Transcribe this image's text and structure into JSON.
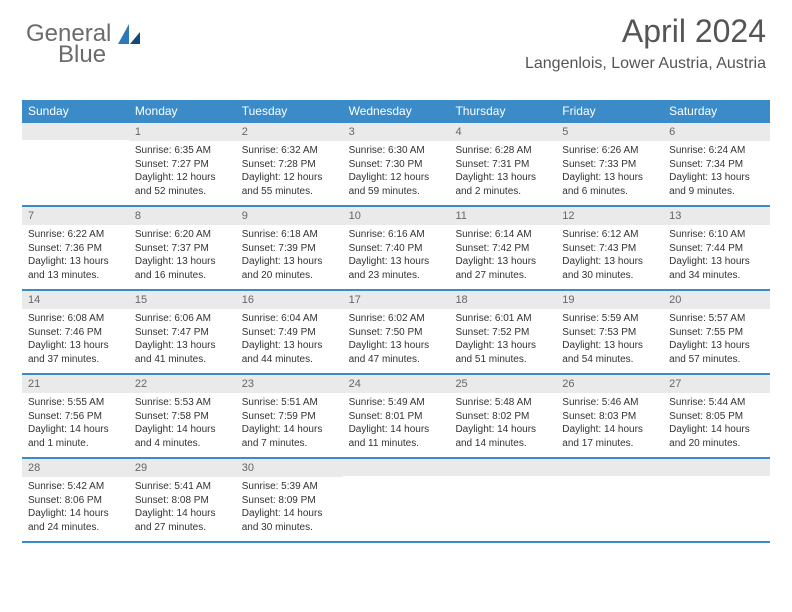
{
  "brand": {
    "word1": "General",
    "word2": "Blue"
  },
  "title": "April 2024",
  "location": "Langenlois, Lower Austria, Austria",
  "colors": {
    "header_bg": "#3b8bc9",
    "daynum_bg": "#eaeaea",
    "rule": "#3b8bc9",
    "text": "#333333",
    "muted": "#6b6b6b"
  },
  "days_of_week": [
    "Sunday",
    "Monday",
    "Tuesday",
    "Wednesday",
    "Thursday",
    "Friday",
    "Saturday"
  ],
  "weeks": [
    [
      {
        "day": null
      },
      {
        "day": 1,
        "sunrise": "Sunrise: 6:35 AM",
        "sunset": "Sunset: 7:27 PM",
        "daylight": "Daylight: 12 hours and 52 minutes."
      },
      {
        "day": 2,
        "sunrise": "Sunrise: 6:32 AM",
        "sunset": "Sunset: 7:28 PM",
        "daylight": "Daylight: 12 hours and 55 minutes."
      },
      {
        "day": 3,
        "sunrise": "Sunrise: 6:30 AM",
        "sunset": "Sunset: 7:30 PM",
        "daylight": "Daylight: 12 hours and 59 minutes."
      },
      {
        "day": 4,
        "sunrise": "Sunrise: 6:28 AM",
        "sunset": "Sunset: 7:31 PM",
        "daylight": "Daylight: 13 hours and 2 minutes."
      },
      {
        "day": 5,
        "sunrise": "Sunrise: 6:26 AM",
        "sunset": "Sunset: 7:33 PM",
        "daylight": "Daylight: 13 hours and 6 minutes."
      },
      {
        "day": 6,
        "sunrise": "Sunrise: 6:24 AM",
        "sunset": "Sunset: 7:34 PM",
        "daylight": "Daylight: 13 hours and 9 minutes."
      }
    ],
    [
      {
        "day": 7,
        "sunrise": "Sunrise: 6:22 AM",
        "sunset": "Sunset: 7:36 PM",
        "daylight": "Daylight: 13 hours and 13 minutes."
      },
      {
        "day": 8,
        "sunrise": "Sunrise: 6:20 AM",
        "sunset": "Sunset: 7:37 PM",
        "daylight": "Daylight: 13 hours and 16 minutes."
      },
      {
        "day": 9,
        "sunrise": "Sunrise: 6:18 AM",
        "sunset": "Sunset: 7:39 PM",
        "daylight": "Daylight: 13 hours and 20 minutes."
      },
      {
        "day": 10,
        "sunrise": "Sunrise: 6:16 AM",
        "sunset": "Sunset: 7:40 PM",
        "daylight": "Daylight: 13 hours and 23 minutes."
      },
      {
        "day": 11,
        "sunrise": "Sunrise: 6:14 AM",
        "sunset": "Sunset: 7:42 PM",
        "daylight": "Daylight: 13 hours and 27 minutes."
      },
      {
        "day": 12,
        "sunrise": "Sunrise: 6:12 AM",
        "sunset": "Sunset: 7:43 PM",
        "daylight": "Daylight: 13 hours and 30 minutes."
      },
      {
        "day": 13,
        "sunrise": "Sunrise: 6:10 AM",
        "sunset": "Sunset: 7:44 PM",
        "daylight": "Daylight: 13 hours and 34 minutes."
      }
    ],
    [
      {
        "day": 14,
        "sunrise": "Sunrise: 6:08 AM",
        "sunset": "Sunset: 7:46 PM",
        "daylight": "Daylight: 13 hours and 37 minutes."
      },
      {
        "day": 15,
        "sunrise": "Sunrise: 6:06 AM",
        "sunset": "Sunset: 7:47 PM",
        "daylight": "Daylight: 13 hours and 41 minutes."
      },
      {
        "day": 16,
        "sunrise": "Sunrise: 6:04 AM",
        "sunset": "Sunset: 7:49 PM",
        "daylight": "Daylight: 13 hours and 44 minutes."
      },
      {
        "day": 17,
        "sunrise": "Sunrise: 6:02 AM",
        "sunset": "Sunset: 7:50 PM",
        "daylight": "Daylight: 13 hours and 47 minutes."
      },
      {
        "day": 18,
        "sunrise": "Sunrise: 6:01 AM",
        "sunset": "Sunset: 7:52 PM",
        "daylight": "Daylight: 13 hours and 51 minutes."
      },
      {
        "day": 19,
        "sunrise": "Sunrise: 5:59 AM",
        "sunset": "Sunset: 7:53 PM",
        "daylight": "Daylight: 13 hours and 54 minutes."
      },
      {
        "day": 20,
        "sunrise": "Sunrise: 5:57 AM",
        "sunset": "Sunset: 7:55 PM",
        "daylight": "Daylight: 13 hours and 57 minutes."
      }
    ],
    [
      {
        "day": 21,
        "sunrise": "Sunrise: 5:55 AM",
        "sunset": "Sunset: 7:56 PM",
        "daylight": "Daylight: 14 hours and 1 minute."
      },
      {
        "day": 22,
        "sunrise": "Sunrise: 5:53 AM",
        "sunset": "Sunset: 7:58 PM",
        "daylight": "Daylight: 14 hours and 4 minutes."
      },
      {
        "day": 23,
        "sunrise": "Sunrise: 5:51 AM",
        "sunset": "Sunset: 7:59 PM",
        "daylight": "Daylight: 14 hours and 7 minutes."
      },
      {
        "day": 24,
        "sunrise": "Sunrise: 5:49 AM",
        "sunset": "Sunset: 8:01 PM",
        "daylight": "Daylight: 14 hours and 11 minutes."
      },
      {
        "day": 25,
        "sunrise": "Sunrise: 5:48 AM",
        "sunset": "Sunset: 8:02 PM",
        "daylight": "Daylight: 14 hours and 14 minutes."
      },
      {
        "day": 26,
        "sunrise": "Sunrise: 5:46 AM",
        "sunset": "Sunset: 8:03 PM",
        "daylight": "Daylight: 14 hours and 17 minutes."
      },
      {
        "day": 27,
        "sunrise": "Sunrise: 5:44 AM",
        "sunset": "Sunset: 8:05 PM",
        "daylight": "Daylight: 14 hours and 20 minutes."
      }
    ],
    [
      {
        "day": 28,
        "sunrise": "Sunrise: 5:42 AM",
        "sunset": "Sunset: 8:06 PM",
        "daylight": "Daylight: 14 hours and 24 minutes."
      },
      {
        "day": 29,
        "sunrise": "Sunrise: 5:41 AM",
        "sunset": "Sunset: 8:08 PM",
        "daylight": "Daylight: 14 hours and 27 minutes."
      },
      {
        "day": 30,
        "sunrise": "Sunrise: 5:39 AM",
        "sunset": "Sunset: 8:09 PM",
        "daylight": "Daylight: 14 hours and 30 minutes."
      },
      {
        "day": null
      },
      {
        "day": null
      },
      {
        "day": null
      },
      {
        "day": null
      }
    ]
  ]
}
